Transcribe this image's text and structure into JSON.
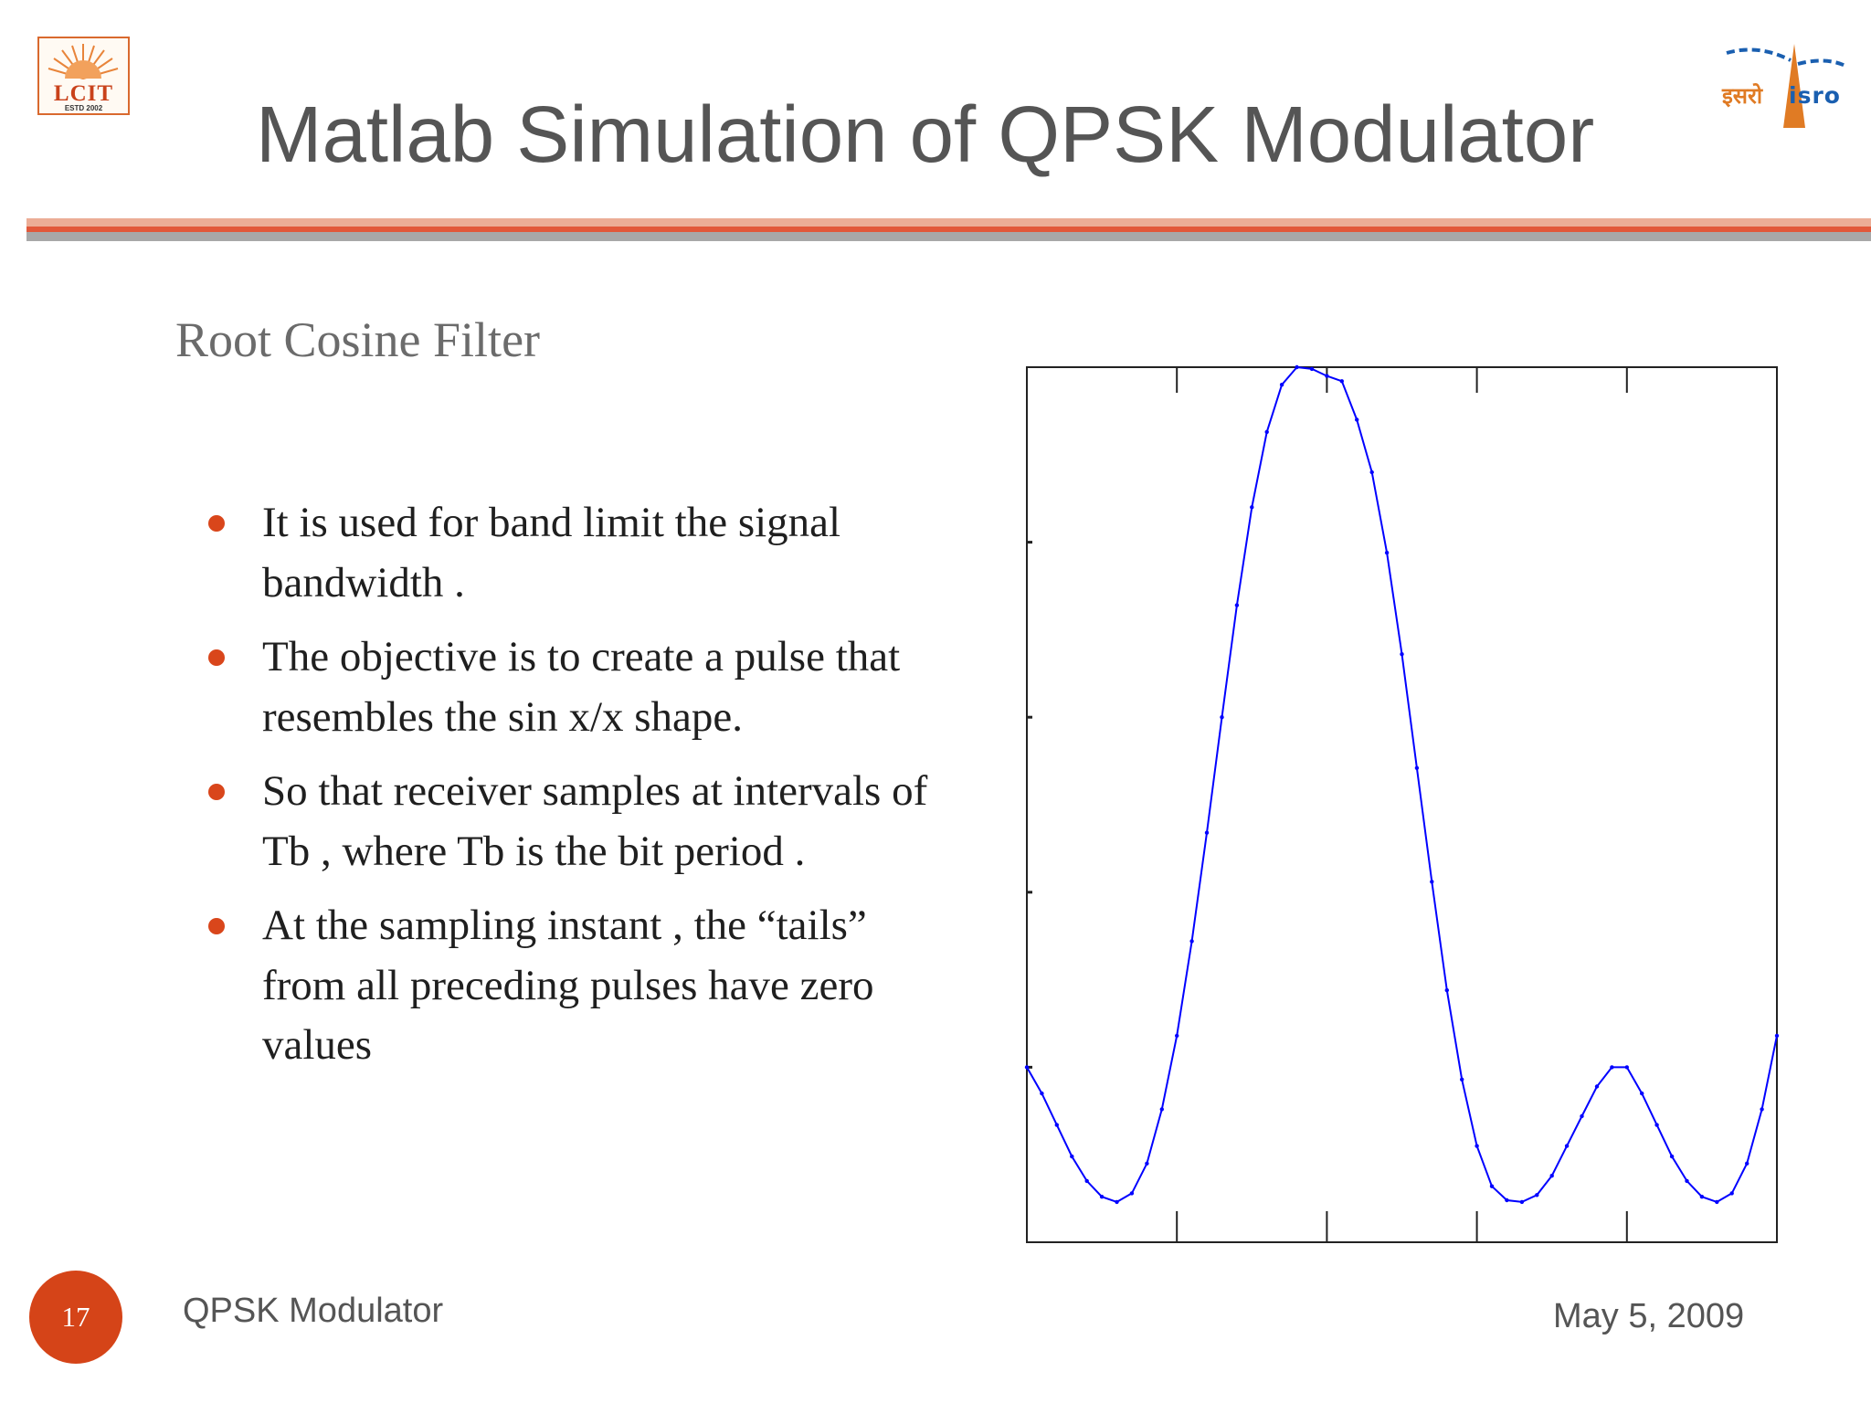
{
  "header": {
    "title": "Matlab Simulation of QPSK Modulator",
    "logo_left": {
      "name": "LCIT",
      "estd": "ESTD     2002"
    },
    "logo_right": {
      "hindi": "इसरो",
      "latin": "isro"
    }
  },
  "content": {
    "subheading": "Root Cosine Filter",
    "bullets": [
      " It is used for band limit the signal bandwidth .",
      "  The  objective is to create a pulse that resembles the sin x/x shape.",
      "  So that receiver samples at intervals of Tb , where Tb is the bit period .",
      " At the sampling instant , the “tails” from all preceding pulses have  zero values"
    ]
  },
  "chart_data": {
    "type": "line",
    "title": "",
    "xlabel": "",
    "ylabel": "",
    "xlim": [
      0,
      5
    ],
    "ylim": [
      0,
      5
    ],
    "x": [
      0.0,
      0.1,
      0.2,
      0.3,
      0.4,
      0.5,
      0.6,
      0.7,
      0.8,
      0.9,
      1.0,
      1.1,
      1.2,
      1.3,
      1.4,
      1.5,
      1.6,
      1.7,
      1.8,
      1.9,
      2.0,
      2.1,
      2.2,
      2.3,
      2.4,
      2.5,
      2.6,
      2.7,
      2.8,
      2.9,
      3.0,
      3.1,
      3.2,
      3.3,
      3.4,
      3.5,
      3.6,
      3.7,
      3.8,
      3.9,
      4.0,
      4.1,
      4.2,
      4.3,
      4.4,
      4.5,
      4.6,
      4.7,
      4.8,
      4.9,
      5.0
    ],
    "series": [
      {
        "color": "#0000ff",
        "values": [
          1.0,
          0.85,
          0.67,
          0.49,
          0.35,
          0.26,
          0.23,
          0.28,
          0.45,
          0.76,
          1.18,
          1.72,
          2.34,
          3.0,
          3.64,
          4.2,
          4.63,
          4.9,
          5.0,
          4.99,
          4.95,
          4.92,
          4.7,
          4.4,
          3.94,
          3.36,
          2.71,
          2.06,
          1.44,
          0.93,
          0.55,
          0.32,
          0.24,
          0.23,
          0.27,
          0.38,
          0.55,
          0.72,
          0.89,
          1.0,
          1.0,
          0.85,
          0.67,
          0.49,
          0.35,
          0.26,
          0.23,
          0.28,
          0.45,
          0.76,
          1.18
        ]
      }
    ]
  },
  "footer": {
    "page_number": "17",
    "left": "QPSK Modulator",
    "right": "May 5, 2009"
  }
}
